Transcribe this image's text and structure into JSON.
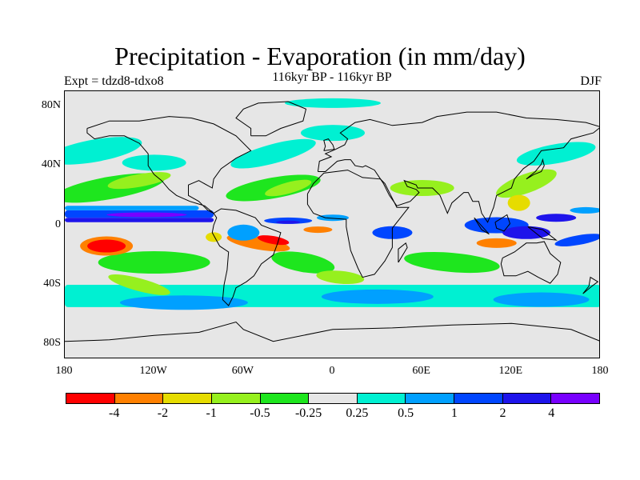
{
  "title": "Precipitation - Evaporation (in mm/day)",
  "subtitle": "116kyr BP - 116kyr BP",
  "left_label": "Expt = tdzd8-tdxo8",
  "right_label": "DJF",
  "lat_ticks": [
    {
      "label": "80N",
      "lat": 80
    },
    {
      "label": "40N",
      "lat": 40
    },
    {
      "label": "0",
      "lat": 0
    },
    {
      "label": "40S",
      "lat": -40
    },
    {
      "label": "80S",
      "lat": -80
    }
  ],
  "lon_ticks": [
    {
      "label": "180",
      "lon": -180
    },
    {
      "label": "120W",
      "lon": -120
    },
    {
      "label": "60W",
      "lon": -60
    },
    {
      "label": "0",
      "lon": 0
    },
    {
      "label": "60E",
      "lon": 60
    },
    {
      "label": "120E",
      "lon": 120
    },
    {
      "label": "180",
      "lon": 180
    }
  ],
  "colorbar": {
    "colors": [
      "#ff0000",
      "#ff8000",
      "#e6dc00",
      "#96f01e",
      "#1ee61e",
      "#e6e6e6",
      "#00f0d2",
      "#00a0ff",
      "#0046ff",
      "#1e14eb",
      "#7800ff"
    ],
    "labels": [
      "-4",
      "-2",
      "-1",
      "-0.5",
      "-0.25",
      "0.25",
      "0.5",
      "1",
      "2",
      "4"
    ]
  },
  "map": {
    "background": "#e6e6e6",
    "lon_range": [
      -180,
      180
    ],
    "lat_range": [
      -90,
      90
    ]
  }
}
